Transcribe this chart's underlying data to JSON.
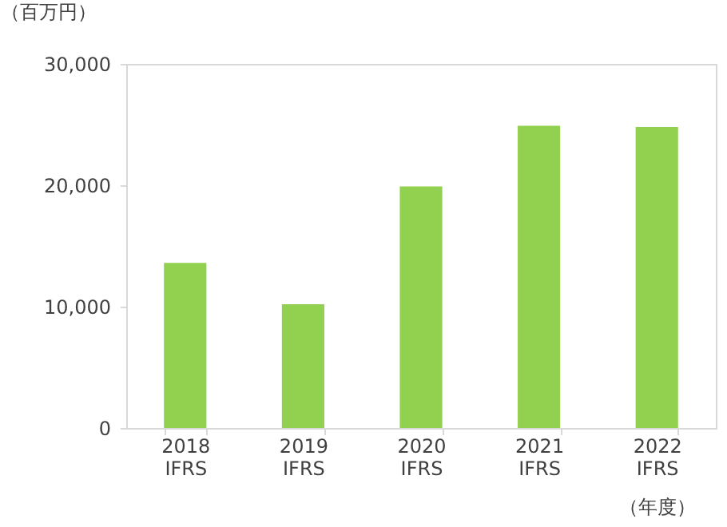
{
  "chart_data": {
    "type": "bar",
    "ylabel": "（百万円）",
    "xlabel": "（年度）",
    "categories": [
      "2018\nIFRS",
      "2019\nIFRS",
      "2020\nIFRS",
      "2021\nIFRS",
      "2022\nIFRS"
    ],
    "values": [
      13600,
      10200,
      19900,
      24900,
      24800
    ],
    "color": "#92d050",
    "ylim": [
      0,
      30000
    ],
    "yticks": [
      0,
      {
        "value": 10000,
        "label": "10,000"
      },
      {
        "value": 20000,
        "label": "20,000"
      },
      {
        "value": 30000,
        "label": "30,000"
      }
    ],
    "grid": false
  }
}
